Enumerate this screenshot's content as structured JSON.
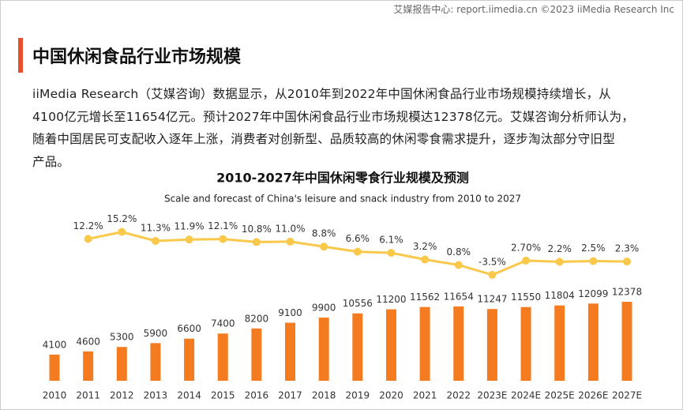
{
  "header": {
    "watermark": "艾媒报告中心: report.iimedia.cn  ©2023  iiMedia Research  Inc"
  },
  "title": "中国休闲食品行业市场规模",
  "paragraph": [
    "iiMedia Research（艾媒咨询）数据显示，从2010年到2022年中国休闲食品行业市场规模持续增长，从",
    "4100亿元增长至11654亿元。预计2027年中国休闲食品行业市场规模达12378亿元。艾媒咨询分析师认为，",
    "随着中国居民可支配收入逐年上涨，消费者对创新型、品质较高的休闲零食需求提升，逐步淘汰部分守旧型",
    "产品。"
  ],
  "chart_data": {
    "type": "bar",
    "title": "2010-2027年中国休闲零食行业规模及预测",
    "subtitle": "Scale and forecast of China's leisure and snack industry from 2010 to 2027",
    "categories": [
      "2010",
      "2011",
      "2012",
      "2013",
      "2014",
      "2015",
      "2016",
      "2017",
      "2018",
      "2019",
      "2020",
      "2021",
      "2022",
      "2023E",
      "2024E",
      "2025E",
      "2026E",
      "2027E"
    ],
    "ylim": [
      0,
      13000
    ],
    "y2lim": [
      -8,
      23
    ],
    "series": [
      {
        "type": "bar",
        "color": "#f47b20",
        "values": [
          4100,
          4600,
          5300,
          5900,
          6600,
          7400,
          8200,
          9100,
          9900,
          10556,
          11200,
          11562,
          11654,
          11247,
          11550,
          11804,
          12099,
          12378
        ]
      },
      {
        "type": "line",
        "axis": "y2",
        "color": "#fac84b",
        "values": [
          null,
          12.2,
          15.2,
          11.3,
          11.9,
          12.1,
          10.8,
          11.0,
          8.8,
          6.6,
          6.1,
          3.2,
          0.8,
          -3.5,
          2.7,
          2.2,
          2.5,
          2.3
        ],
        "value_labels": [
          null,
          "12.2%",
          "15.2%",
          "11.3%",
          "11.9%",
          "12.1%",
          "10.8%",
          "11.0%",
          "8.8%",
          "6.6%",
          "6.1%",
          "3.2%",
          "0.8%",
          "-3.5%",
          "2.70%",
          "2.2%",
          "2.5%",
          "2.3%"
        ]
      }
    ]
  }
}
